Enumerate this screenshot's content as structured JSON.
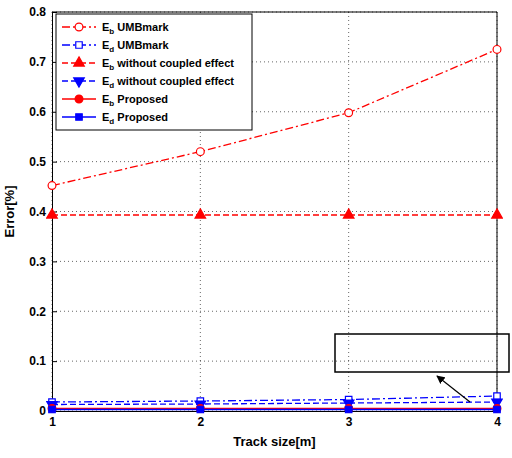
{
  "chart_data": {
    "type": "line",
    "x_label": "Track size[m]",
    "y_label": "Error[%]",
    "x": [
      1,
      2,
      3,
      4
    ],
    "xlim": [
      1,
      4
    ],
    "xticks": [
      1,
      2,
      3,
      4
    ],
    "ylim": [
      0,
      0.8
    ],
    "yticks": [
      0,
      0.1,
      0.2,
      0.3,
      0.4,
      0.5,
      0.6,
      0.7,
      0.8
    ],
    "grid": true,
    "legend": "upper left",
    "series": [
      {
        "name": "Eb UMBmark",
        "color": "#ff0000",
        "marker": "circle-open",
        "line_style": "dashdot",
        "values": [
          0.452,
          0.52,
          0.598,
          0.725
        ]
      },
      {
        "name": "Ed UMBmark",
        "color": "#0000ff",
        "marker": "square-open",
        "line_style": "dashdot",
        "values": [
          0.018,
          0.02,
          0.023,
          0.03
        ]
      },
      {
        "name": "Eb without coupled effect",
        "color": "#ff0000",
        "marker": "triangle",
        "line_style": "dashed",
        "values": [
          0.393,
          0.393,
          0.393,
          0.393
        ]
      },
      {
        "name": "Ed without coupled effect",
        "color": "#0000ff",
        "marker": "triangle-down",
        "line_style": "dashed",
        "values": [
          0.013,
          0.014,
          0.016,
          0.018
        ]
      },
      {
        "name": "Eb Proposed",
        "color": "#ff0000",
        "marker": "circle",
        "line_style": "solid",
        "values": [
          0.005,
          0.005,
          0.005,
          0.005
        ]
      },
      {
        "name": "Ed Proposed",
        "color": "#0000ff",
        "marker": "square",
        "line_style": "solid",
        "values": [
          0.003,
          0.003,
          0.003,
          0.003
        ]
      }
    ]
  }
}
